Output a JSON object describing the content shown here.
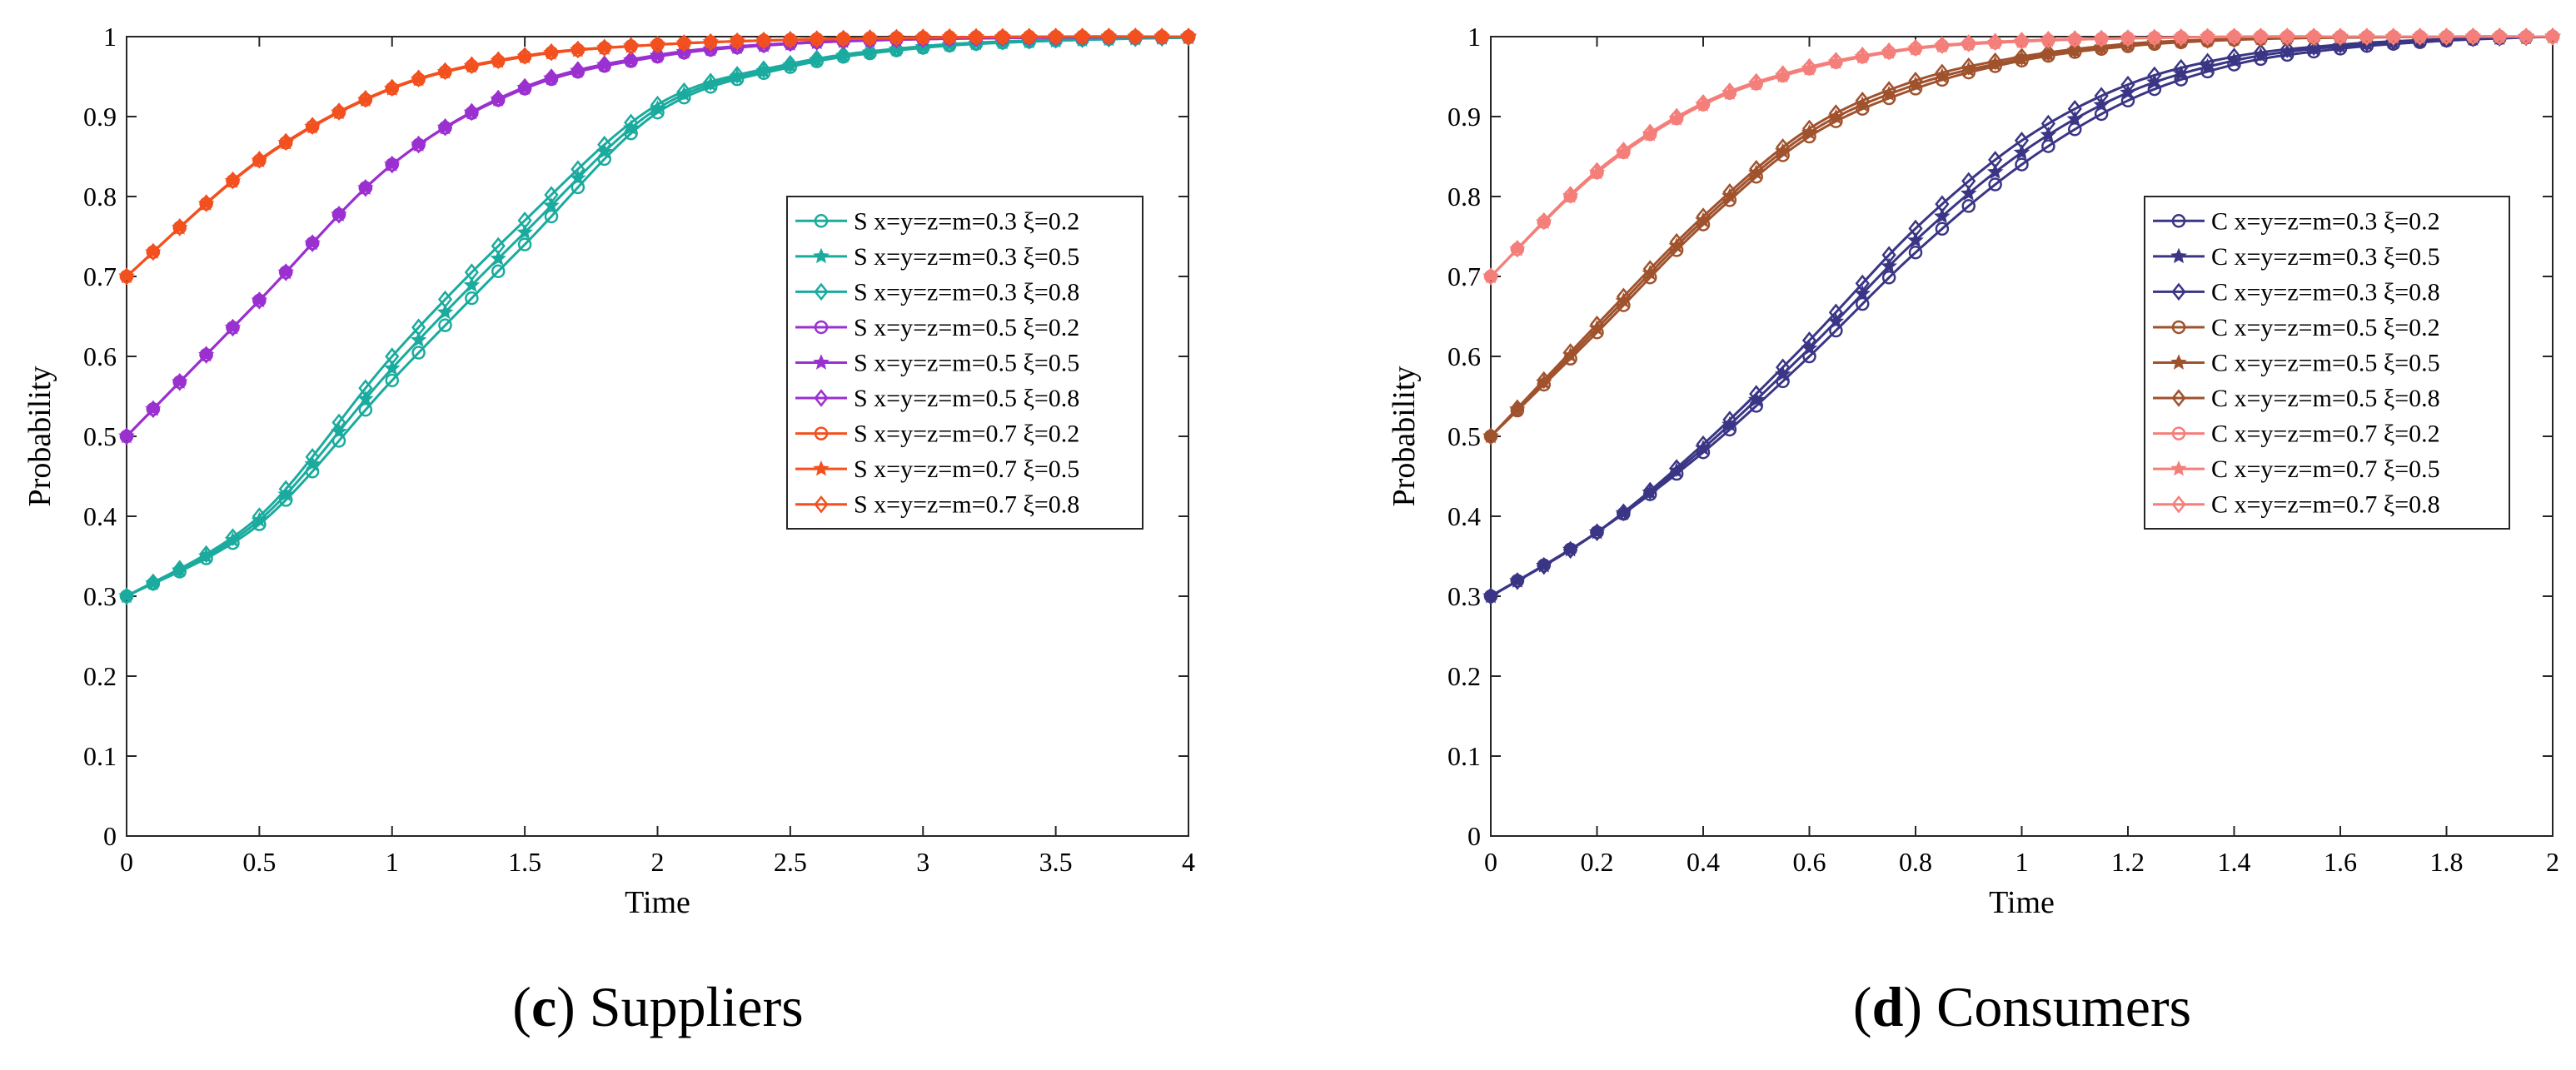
{
  "chart_data": [
    {
      "panel": "c",
      "caption_letter": "c",
      "caption_title": "Suppliers",
      "type": "line",
      "xlabel": "Time",
      "ylabel": "Probability",
      "xlim": [
        0,
        4
      ],
      "ylim": [
        0,
        1
      ],
      "x_ticks": [
        "0",
        "0.5",
        "1",
        "1.5",
        "2",
        "2.5",
        "3",
        "3.5",
        "4"
      ],
      "y_ticks": [
        "0",
        "0.1",
        "0.2",
        "0.3",
        "0.4",
        "0.5",
        "0.6",
        "0.7",
        "0.8",
        "0.9",
        "1"
      ],
      "grid": false,
      "legend_position": "right",
      "x": [
        0,
        0.5,
        1,
        1.5,
        2,
        2.5,
        3,
        3.5,
        4
      ],
      "series": [
        {
          "name": "S x=y=z=m=0.3 ξ=0.2",
          "color": "#1aab9e",
          "marker": "circle",
          "values": [
            0.3,
            0.39,
            0.57,
            0.74,
            0.905,
            0.962,
            0.986,
            0.995,
            0.999
          ]
        },
        {
          "name": "S x=y=z=m=0.3 ξ=0.5",
          "color": "#1aab9e",
          "marker": "star",
          "values": [
            0.3,
            0.395,
            0.585,
            0.755,
            0.91,
            0.964,
            0.987,
            0.995,
            0.999
          ]
        },
        {
          "name": "S x=y=z=m=0.3 ξ=0.8",
          "color": "#1aab9e",
          "marker": "diamond",
          "values": [
            0.3,
            0.4,
            0.6,
            0.77,
            0.915,
            0.966,
            0.988,
            0.996,
            0.999
          ]
        },
        {
          "name": "S x=y=z=m=0.5 ξ=0.2",
          "color": "#9b30d0",
          "marker": "circle",
          "values": [
            0.5,
            0.67,
            0.84,
            0.935,
            0.975,
            0.991,
            0.997,
            0.999,
            1.0
          ]
        },
        {
          "name": "S x=y=z=m=0.5 ξ=0.5",
          "color": "#9b30d0",
          "marker": "star",
          "values": [
            0.5,
            0.67,
            0.84,
            0.936,
            0.976,
            0.991,
            0.997,
            0.999,
            1.0
          ]
        },
        {
          "name": "S x=y=z=m=0.5 ξ=0.8",
          "color": "#9b30d0",
          "marker": "diamond",
          "values": [
            0.5,
            0.67,
            0.84,
            0.937,
            0.977,
            0.992,
            0.997,
            0.999,
            1.0
          ]
        },
        {
          "name": "S x=y=z=m=0.7 ξ=0.2",
          "color": "#f2501e",
          "marker": "circle",
          "values": [
            0.7,
            0.845,
            0.935,
            0.975,
            0.99,
            0.996,
            0.999,
            1.0,
            1.0
          ]
        },
        {
          "name": "S x=y=z=m=0.7 ξ=0.5",
          "color": "#f2501e",
          "marker": "star",
          "values": [
            0.7,
            0.845,
            0.935,
            0.975,
            0.99,
            0.996,
            0.999,
            1.0,
            1.0
          ]
        },
        {
          "name": "S x=y=z=m=0.7 ξ=0.8",
          "color": "#f2501e",
          "marker": "diamond",
          "values": [
            0.7,
            0.846,
            0.936,
            0.976,
            0.99,
            0.996,
            0.999,
            1.0,
            1.0
          ]
        }
      ]
    },
    {
      "panel": "d",
      "caption_letter": "d",
      "caption_title": "Consumers",
      "type": "line",
      "xlabel": "Time",
      "ylabel": "Probability",
      "xlim": [
        0,
        2
      ],
      "ylim": [
        0,
        1
      ],
      "x_ticks": [
        "0",
        "0.2",
        "0.4",
        "0.6",
        "0.8",
        "1",
        "1.2",
        "1.4",
        "1.6",
        "1.8",
        "2"
      ],
      "y_ticks": [
        "0",
        "0.1",
        "0.2",
        "0.3",
        "0.4",
        "0.5",
        "0.6",
        "0.7",
        "0.8",
        "0.9",
        "1"
      ],
      "grid": false,
      "legend_position": "right",
      "x": [
        0,
        0.2,
        0.4,
        0.6,
        0.8,
        1,
        1.2,
        1.4,
        1.6,
        1.8,
        2
      ],
      "series": [
        {
          "name": "C x=y=z=m=0.3 ξ=0.2",
          "color": "#3a3585",
          "marker": "circle",
          "values": [
            0.3,
            0.38,
            0.48,
            0.6,
            0.73,
            0.84,
            0.92,
            0.965,
            0.985,
            0.995,
            1.0
          ]
        },
        {
          "name": "C x=y=z=m=0.3 ξ=0.5",
          "color": "#3a3585",
          "marker": "star",
          "values": [
            0.3,
            0.38,
            0.485,
            0.61,
            0.745,
            0.855,
            0.93,
            0.97,
            0.988,
            0.996,
            1.0
          ]
        },
        {
          "name": "C x=y=z=m=0.3 ξ=0.8",
          "color": "#3a3585",
          "marker": "diamond",
          "values": [
            0.3,
            0.38,
            0.49,
            0.62,
            0.76,
            0.87,
            0.94,
            0.975,
            0.99,
            0.997,
            1.0
          ]
        },
        {
          "name": "C x=y=z=m=0.5 ξ=0.2",
          "color": "#a0522d",
          "marker": "circle",
          "values": [
            0.5,
            0.63,
            0.765,
            0.875,
            0.935,
            0.97,
            0.988,
            0.996,
            0.999,
            1.0,
            1.0
          ]
        },
        {
          "name": "C x=y=z=m=0.5 ξ=0.5",
          "color": "#a0522d",
          "marker": "star",
          "values": [
            0.5,
            0.635,
            0.77,
            0.88,
            0.94,
            0.972,
            0.99,
            0.997,
            0.999,
            1.0,
            1.0
          ]
        },
        {
          "name": "C x=y=z=m=0.5 ξ=0.8",
          "color": "#a0522d",
          "marker": "diamond",
          "values": [
            0.5,
            0.64,
            0.775,
            0.885,
            0.945,
            0.975,
            0.991,
            0.997,
            0.999,
            1.0,
            1.0
          ]
        },
        {
          "name": "C x=y=z=m=0.7 ξ=0.2",
          "color": "#f47f7a",
          "marker": "circle",
          "values": [
            0.7,
            0.83,
            0.915,
            0.96,
            0.985,
            0.994,
            0.998,
            1.0,
            1.0,
            1.0,
            1.0
          ]
        },
        {
          "name": "C x=y=z=m=0.7 ξ=0.5",
          "color": "#f47f7a",
          "marker": "star",
          "values": [
            0.7,
            0.83,
            0.915,
            0.96,
            0.985,
            0.994,
            0.998,
            1.0,
            1.0,
            1.0,
            1.0
          ]
        },
        {
          "name": "C x=y=z=m=0.7 ξ=0.8",
          "color": "#f47f7a",
          "marker": "diamond",
          "values": [
            0.7,
            0.832,
            0.917,
            0.962,
            0.986,
            0.995,
            0.998,
            1.0,
            1.0,
            1.0,
            1.0
          ]
        }
      ]
    }
  ]
}
